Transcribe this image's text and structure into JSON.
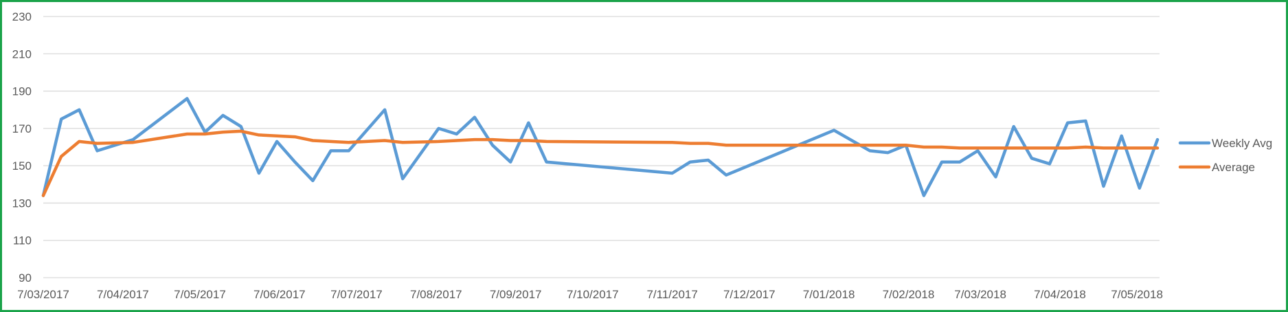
{
  "chart_data": {
    "type": "line",
    "title": "",
    "xlabel": "",
    "ylabel": "",
    "ylim": [
      90,
      230
    ],
    "ytick_step": 20,
    "grid": true,
    "legend_position": "right",
    "x_tick_labels": [
      "7/03/2017",
      "7/04/2017",
      "7/05/2017",
      "7/06/2017",
      "7/07/2017",
      "7/08/2017",
      "7/09/2017",
      "7/10/2017",
      "7/11/2017",
      "7/12/2017",
      "7/01/2018",
      "7/02/2018",
      "7/03/2018",
      "7/04/2018",
      "7/05/2018"
    ],
    "series": [
      {
        "name": "Weekly Avg",
        "color": "#5b9bd5",
        "points": [
          [
            "2017-03-07",
            134
          ],
          [
            "2017-03-14",
            175
          ],
          [
            "2017-03-21",
            180
          ],
          [
            "2017-03-28",
            158
          ],
          [
            "2017-04-11",
            164
          ],
          [
            "2017-05-02",
            186
          ],
          [
            "2017-05-09",
            168
          ],
          [
            "2017-05-16",
            177
          ],
          [
            "2017-05-23",
            171
          ],
          [
            "2017-05-30",
            146
          ],
          [
            "2017-06-06",
            163
          ],
          [
            "2017-06-13",
            152
          ],
          [
            "2017-06-20",
            142
          ],
          [
            "2017-06-27",
            158
          ],
          [
            "2017-07-04",
            158
          ],
          [
            "2017-07-18",
            180
          ],
          [
            "2017-07-25",
            143
          ],
          [
            "2017-08-08",
            170
          ],
          [
            "2017-08-15",
            167
          ],
          [
            "2017-08-22",
            176
          ],
          [
            "2017-08-29",
            161
          ],
          [
            "2017-09-05",
            152
          ],
          [
            "2017-09-12",
            173
          ],
          [
            "2017-09-19",
            152
          ],
          [
            "2017-11-07",
            146
          ],
          [
            "2017-11-14",
            152
          ],
          [
            "2017-11-21",
            153
          ],
          [
            "2017-11-28",
            145
          ],
          [
            "2018-01-09",
            169
          ],
          [
            "2018-01-23",
            158
          ],
          [
            "2018-01-30",
            157
          ],
          [
            "2018-02-06",
            161
          ],
          [
            "2018-02-13",
            134
          ],
          [
            "2018-02-20",
            152
          ],
          [
            "2018-02-27",
            152
          ],
          [
            "2018-03-06",
            158
          ],
          [
            "2018-03-13",
            144
          ],
          [
            "2018-03-20",
            171
          ],
          [
            "2018-03-27",
            154
          ],
          [
            "2018-04-03",
            151
          ],
          [
            "2018-04-10",
            173
          ],
          [
            "2018-04-17",
            174
          ],
          [
            "2018-04-24",
            139
          ],
          [
            "2018-05-01",
            166
          ],
          [
            "2018-05-08",
            138
          ],
          [
            "2018-05-15",
            164
          ]
        ]
      },
      {
        "name": "Average",
        "color": "#ed7d31",
        "points": [
          [
            "2017-03-07",
            134
          ],
          [
            "2017-03-14",
            155
          ],
          [
            "2017-03-21",
            163
          ],
          [
            "2017-03-28",
            162
          ],
          [
            "2017-04-11",
            162.5
          ],
          [
            "2017-05-02",
            167
          ],
          [
            "2017-05-09",
            167
          ],
          [
            "2017-05-16",
            168
          ],
          [
            "2017-05-23",
            168.5
          ],
          [
            "2017-05-30",
            166.5
          ],
          [
            "2017-06-06",
            166
          ],
          [
            "2017-06-13",
            165.5
          ],
          [
            "2017-06-20",
            163.5
          ],
          [
            "2017-06-27",
            163
          ],
          [
            "2017-07-04",
            162.5
          ],
          [
            "2017-07-18",
            163.5
          ],
          [
            "2017-07-25",
            162.5
          ],
          [
            "2017-08-08",
            163
          ],
          [
            "2017-08-15",
            163.5
          ],
          [
            "2017-08-22",
            164
          ],
          [
            "2017-08-29",
            164
          ],
          [
            "2017-09-05",
            163.5
          ],
          [
            "2017-09-12",
            163.5
          ],
          [
            "2017-09-19",
            163
          ],
          [
            "2017-11-07",
            162.5
          ],
          [
            "2017-11-14",
            162
          ],
          [
            "2017-11-21",
            162
          ],
          [
            "2017-11-28",
            161
          ],
          [
            "2018-01-09",
            161
          ],
          [
            "2018-01-23",
            161
          ],
          [
            "2018-01-30",
            161
          ],
          [
            "2018-02-06",
            161
          ],
          [
            "2018-02-13",
            160
          ],
          [
            "2018-02-20",
            160
          ],
          [
            "2018-02-27",
            159.5
          ],
          [
            "2018-03-06",
            159.5
          ],
          [
            "2018-03-13",
            159.5
          ],
          [
            "2018-03-20",
            159.5
          ],
          [
            "2018-03-27",
            159.5
          ],
          [
            "2018-04-03",
            159.5
          ],
          [
            "2018-04-10",
            159.5
          ],
          [
            "2018-04-17",
            160
          ],
          [
            "2018-04-24",
            159.5
          ],
          [
            "2018-05-01",
            159.5
          ],
          [
            "2018-05-08",
            159.5
          ],
          [
            "2018-05-15",
            159.5
          ]
        ]
      }
    ]
  }
}
